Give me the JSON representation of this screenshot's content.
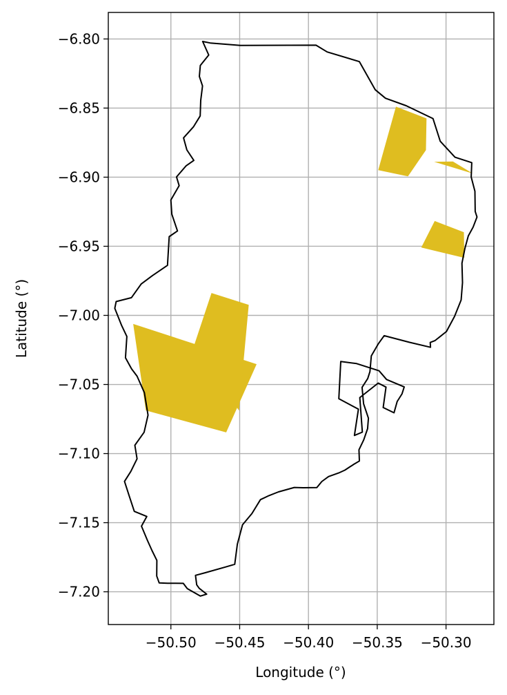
{
  "map": {
    "xlabel": "Longitude (°)",
    "ylabel": "Latitude (°)",
    "xlim": [
      -50.5455,
      -50.2652
    ],
    "ylim": [
      -7.2237,
      -6.7808
    ],
    "xticks": [
      -50.5,
      -50.45,
      -50.4,
      -50.35,
      -50.3
    ],
    "xtick_labels": [
      "−50.50",
      "−50.45",
      "−50.40",
      "−50.35",
      "−50.30"
    ],
    "yticks": [
      -6.8,
      -6.85,
      -6.9,
      -6.95,
      -7.0,
      -7.05,
      -7.1,
      -7.15,
      -7.2
    ],
    "ytick_labels": [
      "−6.80",
      "−6.85",
      "−6.90",
      "−6.95",
      "−7.00",
      "−7.05",
      "−7.10",
      "−7.15",
      "−7.20"
    ],
    "grid": true,
    "boundary_color": "#000000",
    "fill_color": "#dfbd20",
    "municipality_boundary": [
      [
        -50.4769,
        -6.8018
      ],
      [
        -50.4715,
        -6.8029
      ],
      [
        -50.4495,
        -6.8047
      ],
      [
        -50.3945,
        -6.8045
      ],
      [
        -50.3864,
        -6.8094
      ],
      [
        -50.363,
        -6.8164
      ],
      [
        -50.3515,
        -6.8367
      ],
      [
        -50.344,
        -6.8429
      ],
      [
        -50.329,
        -6.8483
      ],
      [
        -50.3095,
        -6.8576
      ],
      [
        -50.3042,
        -6.874
      ],
      [
        -50.2935,
        -6.8856
      ],
      [
        -50.2813,
        -6.8895
      ],
      [
        -50.2817,
        -6.8999
      ],
      [
        -50.279,
        -6.9102
      ],
      [
        -50.2788,
        -6.9248
      ],
      [
        -50.2775,
        -6.9288
      ],
      [
        -50.2803,
        -6.9361
      ],
      [
        -50.2838,
        -6.9425
      ],
      [
        -50.2863,
        -6.9517
      ],
      [
        -50.2884,
        -6.9623
      ],
      [
        -50.288,
        -6.9763
      ],
      [
        -50.289,
        -6.9889
      ],
      [
        -50.2938,
        -7.0007
      ],
      [
        -50.2997,
        -7.0117
      ],
      [
        -50.3079,
        -7.0182
      ],
      [
        -50.3115,
        -7.0196
      ],
      [
        -50.3113,
        -7.0231
      ],
      [
        -50.3265,
        -7.0195
      ],
      [
        -50.345,
        -7.0147
      ],
      [
        -50.3491,
        -7.0204
      ],
      [
        -50.3543,
        -7.0293
      ],
      [
        -50.3553,
        -7.0407
      ],
      [
        -50.3569,
        -7.0457
      ],
      [
        -50.361,
        -7.0521
      ],
      [
        -50.3599,
        -7.064
      ],
      [
        -50.3564,
        -7.0744
      ],
      [
        -50.357,
        -7.082
      ],
      [
        -50.3598,
        -7.0901
      ],
      [
        -50.3633,
        -7.0973
      ],
      [
        -50.363,
        -7.1054
      ],
      [
        -50.3669,
        -7.1077
      ],
      [
        -50.37,
        -7.1097
      ],
      [
        -50.3735,
        -7.112
      ],
      [
        -50.378,
        -7.114
      ],
      [
        -50.3854,
        -7.1166
      ],
      [
        -50.3903,
        -7.1202
      ],
      [
        -50.3939,
        -7.1246
      ],
      [
        -50.4038,
        -7.1247
      ],
      [
        -50.4103,
        -7.1245
      ],
      [
        -50.4218,
        -7.1277
      ],
      [
        -50.4287,
        -7.1304
      ],
      [
        -50.4349,
        -7.1333
      ],
      [
        -50.4411,
        -7.1434
      ],
      [
        -50.4479,
        -7.1515
      ],
      [
        -50.4517,
        -7.1655
      ],
      [
        -50.4536,
        -7.1801
      ],
      [
        -50.46,
        -7.182
      ],
      [
        -50.475,
        -7.1862
      ],
      [
        -50.4821,
        -7.1881
      ],
      [
        -50.4816,
        -7.192
      ],
      [
        -50.4812,
        -7.195
      ],
      [
        -50.4794,
        -7.1975
      ],
      [
        -50.474,
        -7.2017
      ],
      [
        -50.4786,
        -7.2031
      ],
      [
        -50.4881,
        -7.1977
      ],
      [
        -50.491,
        -7.1939
      ],
      [
        -50.5024,
        -7.1938
      ],
      [
        -50.5085,
        -7.1936
      ],
      [
        -50.5103,
        -7.1886
      ],
      [
        -50.5102,
        -7.1773
      ],
      [
        -50.5137,
        -7.1702
      ],
      [
        -50.517,
        -7.1629
      ],
      [
        -50.5214,
        -7.1525
      ],
      [
        -50.5175,
        -7.1455
      ],
      [
        -50.5266,
        -7.1418
      ],
      [
        -50.5303,
        -7.1306
      ],
      [
        -50.5337,
        -7.1201
      ],
      [
        -50.5291,
        -7.1129
      ],
      [
        -50.5246,
        -7.1038
      ],
      [
        -50.5262,
        -7.094
      ],
      [
        -50.5195,
        -7.0846
      ],
      [
        -50.5166,
        -7.0722
      ],
      [
        -50.5193,
        -7.0559
      ],
      [
        -50.5246,
        -7.044
      ],
      [
        -50.5286,
        -7.0387
      ],
      [
        -50.533,
        -7.0307
      ],
      [
        -50.532,
        -7.0153
      ],
      [
        -50.5358,
        -7.0073
      ],
      [
        -50.5408,
        -6.9949
      ],
      [
        -50.5398,
        -6.99
      ],
      [
        -50.5287,
        -6.9872
      ],
      [
        -50.5216,
        -6.9773
      ],
      [
        -50.5135,
        -6.9713
      ],
      [
        -50.5025,
        -6.9638
      ],
      [
        -50.5012,
        -6.943
      ],
      [
        -50.4952,
        -6.9389
      ],
      [
        -50.4993,
        -6.9268
      ],
      [
        -50.5,
        -6.9165
      ],
      [
        -50.494,
        -6.9061
      ],
      [
        -50.4959,
        -6.8998
      ],
      [
        -50.4889,
        -6.8917
      ],
      [
        -50.4833,
        -6.8879
      ],
      [
        -50.4884,
        -6.8803
      ],
      [
        -50.4908,
        -6.8716
      ],
      [
        -50.4835,
        -6.8635
      ],
      [
        -50.4787,
        -6.8557
      ],
      [
        -50.4783,
        -6.8444
      ],
      [
        -50.477,
        -6.834
      ],
      [
        -50.4793,
        -6.8271
      ],
      [
        -50.4786,
        -6.8192
      ],
      [
        -50.4725,
        -6.8116
      ],
      [
        -50.4769,
        -6.8018
      ]
    ],
    "excluded_area_outline": [
      [
        -50.3765,
        -7.0334
      ],
      [
        -50.365,
        -7.0349
      ],
      [
        -50.3487,
        -7.0401
      ],
      [
        -50.3432,
        -7.0464
      ],
      [
        -50.3304,
        -7.0518
      ],
      [
        -50.332,
        -7.0568
      ],
      [
        -50.3355,
        -7.0623
      ],
      [
        -50.3378,
        -7.0705
      ],
      [
        -50.3457,
        -7.0667
      ],
      [
        -50.3436,
        -7.0519
      ],
      [
        -50.3493,
        -7.049
      ],
      [
        -50.3627,
        -7.0595
      ],
      [
        -50.3608,
        -7.0845
      ],
      [
        -50.3666,
        -7.0869
      ],
      [
        -50.3637,
        -7.0679
      ],
      [
        -50.3779,
        -7.0603
      ],
      [
        -50.3765,
        -7.0334
      ]
    ],
    "mining_areas": [
      [
        [
          -50.5274,
          -7.0062
        ],
        [
          -50.4377,
          -7.0353
        ],
        [
          -50.4598,
          -7.0847
        ],
        [
          -50.5182,
          -7.0688
        ]
      ],
      [
        [
          -50.4705,
          -6.9838
        ],
        [
          -50.4434,
          -6.9924
        ],
        [
          -50.4505,
          -7.0689
        ],
        [
          -50.4833,
          -7.0223
        ]
      ],
      [
        [
          -50.3364,
          -6.849
        ],
        [
          -50.3142,
          -6.8575
        ],
        [
          -50.3146,
          -6.8804
        ],
        [
          -50.3277,
          -6.8994
        ],
        [
          -50.3493,
          -6.8949
        ]
      ],
      [
        [
          -50.3086,
          -6.8889
        ],
        [
          -50.2806,
          -6.8973
        ],
        [
          -50.295,
          -6.8887
        ]
      ],
      [
        [
          -50.3082,
          -6.9317
        ],
        [
          -50.287,
          -6.9398
        ],
        [
          -50.2867,
          -6.9584
        ],
        [
          -50.318,
          -6.9509
        ]
      ]
    ]
  }
}
